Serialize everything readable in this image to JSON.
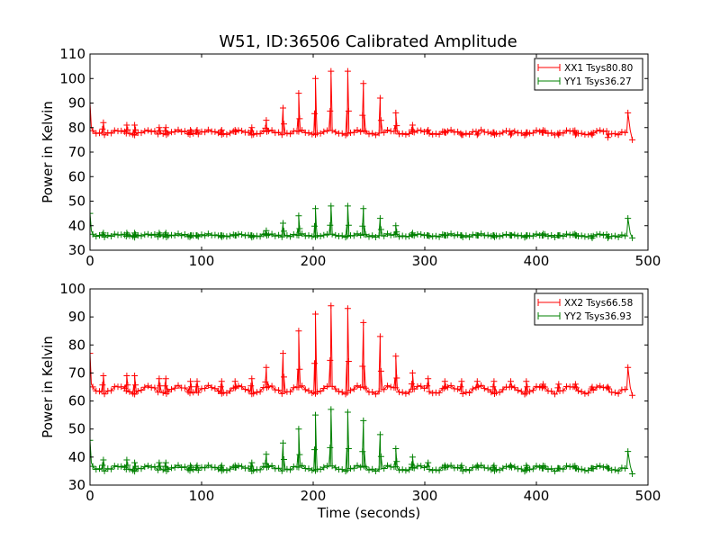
{
  "title": "W51, ID:36506 Calibrated Amplitude",
  "colors": {
    "xx": "#ff0000",
    "yy": "#008000",
    "axis": "#000000",
    "background": "#ffffff"
  },
  "chart_data": [
    {
      "type": "line",
      "ylabel": "Power in Kelvin",
      "xlabel": "",
      "xlim": [
        0,
        500
      ],
      "ylim": [
        30,
        110
      ],
      "xticks": [
        0,
        100,
        200,
        300,
        400,
        500
      ],
      "yticks": [
        30,
        40,
        50,
        60,
        70,
        80,
        90,
        100,
        110
      ],
      "grid": false,
      "legend_position": "top-right",
      "series": [
        {
          "name": "XX1 Tsys80.80",
          "color": "#ff0000",
          "marker": "+",
          "start": {
            "x": 0,
            "y": 90
          },
          "baseline": 78,
          "ripple_amplitude": 1.5,
          "ripple_period_s": 27,
          "end": {
            "x": 482,
            "peak": 86,
            "x_last": 486,
            "y_last": 75
          },
          "peaks": [
            {
              "x": 12,
              "y": 82
            },
            {
              "x": 33,
              "y": 81
            },
            {
              "x": 40,
              "y": 81
            },
            {
              "x": 62,
              "y": 80
            },
            {
              "x": 68,
              "y": 80
            },
            {
              "x": 90,
              "y": 79
            },
            {
              "x": 96,
              "y": 79
            },
            {
              "x": 118,
              "y": 79
            },
            {
              "x": 130,
              "y": 79
            },
            {
              "x": 145,
              "y": 80
            },
            {
              "x": 158,
              "y": 83
            },
            {
              "x": 173,
              "y": 88
            },
            {
              "x": 187,
              "y": 94
            },
            {
              "x": 202,
              "y": 100
            },
            {
              "x": 216,
              "y": 103
            },
            {
              "x": 231,
              "y": 103
            },
            {
              "x": 245,
              "y": 98
            },
            {
              "x": 260,
              "y": 92
            },
            {
              "x": 274,
              "y": 86
            },
            {
              "x": 289,
              "y": 81
            },
            {
              "x": 303,
              "y": 79
            },
            {
              "x": 318,
              "y": 78
            },
            {
              "x": 333,
              "y": 77
            },
            {
              "x": 347,
              "y": 77
            },
            {
              "x": 362,
              "y": 78
            },
            {
              "x": 377,
              "y": 77
            },
            {
              "x": 391,
              "y": 78
            },
            {
              "x": 406,
              "y": 78
            },
            {
              "x": 420,
              "y": 77
            },
            {
              "x": 435,
              "y": 77
            },
            {
              "x": 450,
              "y": 77
            },
            {
              "x": 464,
              "y": 76
            }
          ]
        },
        {
          "name": "YY1 Tsys36.27",
          "color": "#008000",
          "marker": "+",
          "start": {
            "x": 0,
            "y": 45
          },
          "baseline": 36,
          "ripple_amplitude": 0.8,
          "ripple_period_s": 27,
          "end": {
            "x": 482,
            "peak": 43,
            "x_last": 486,
            "y_last": 35
          },
          "peaks": [
            {
              "x": 12,
              "y": 37
            },
            {
              "x": 33,
              "y": 37
            },
            {
              "x": 40,
              "y": 37
            },
            {
              "x": 62,
              "y": 37
            },
            {
              "x": 68,
              "y": 37
            },
            {
              "x": 90,
              "y": 36
            },
            {
              "x": 96,
              "y": 36
            },
            {
              "x": 118,
              "y": 36
            },
            {
              "x": 130,
              "y": 36
            },
            {
              "x": 145,
              "y": 36
            },
            {
              "x": 158,
              "y": 38
            },
            {
              "x": 173,
              "y": 41
            },
            {
              "x": 187,
              "y": 44
            },
            {
              "x": 202,
              "y": 47
            },
            {
              "x": 216,
              "y": 48
            },
            {
              "x": 231,
              "y": 48
            },
            {
              "x": 245,
              "y": 47
            },
            {
              "x": 260,
              "y": 43
            },
            {
              "x": 274,
              "y": 40
            },
            {
              "x": 289,
              "y": 37
            },
            {
              "x": 303,
              "y": 36
            },
            {
              "x": 318,
              "y": 36
            },
            {
              "x": 333,
              "y": 36
            },
            {
              "x": 347,
              "y": 36
            },
            {
              "x": 362,
              "y": 36
            },
            {
              "x": 377,
              "y": 36
            },
            {
              "x": 391,
              "y": 36
            },
            {
              "x": 406,
              "y": 36
            },
            {
              "x": 420,
              "y": 36
            },
            {
              "x": 435,
              "y": 36
            },
            {
              "x": 450,
              "y": 35
            },
            {
              "x": 464,
              "y": 35
            }
          ]
        }
      ]
    },
    {
      "type": "line",
      "ylabel": "Power in Kelvin",
      "xlabel": "Time (seconds)",
      "xlim": [
        0,
        500
      ],
      "ylim": [
        30,
        100
      ],
      "xticks": [
        0,
        100,
        200,
        300,
        400,
        500
      ],
      "yticks": [
        30,
        40,
        50,
        60,
        70,
        80,
        90,
        100
      ],
      "grid": false,
      "legend_position": "top-right",
      "series": [
        {
          "name": "XX2 Tsys66.58",
          "color": "#ff0000",
          "marker": "+",
          "start": {
            "x": 0,
            "y": 77
          },
          "baseline": 64,
          "ripple_amplitude": 2.5,
          "ripple_period_s": 27,
          "end": {
            "x": 482,
            "peak": 72,
            "x_last": 486,
            "y_last": 62
          },
          "peaks": [
            {
              "x": 12,
              "y": 69
            },
            {
              "x": 33,
              "y": 69
            },
            {
              "x": 40,
              "y": 69
            },
            {
              "x": 62,
              "y": 68
            },
            {
              "x": 68,
              "y": 68
            },
            {
              "x": 90,
              "y": 67
            },
            {
              "x": 96,
              "y": 67
            },
            {
              "x": 118,
              "y": 67
            },
            {
              "x": 130,
              "y": 67
            },
            {
              "x": 145,
              "y": 68
            },
            {
              "x": 158,
              "y": 72
            },
            {
              "x": 173,
              "y": 77
            },
            {
              "x": 187,
              "y": 85
            },
            {
              "x": 202,
              "y": 91
            },
            {
              "x": 216,
              "y": 94
            },
            {
              "x": 231,
              "y": 93
            },
            {
              "x": 245,
              "y": 88
            },
            {
              "x": 260,
              "y": 83
            },
            {
              "x": 274,
              "y": 76
            },
            {
              "x": 289,
              "y": 70
            },
            {
              "x": 303,
              "y": 68
            },
            {
              "x": 318,
              "y": 67
            },
            {
              "x": 333,
              "y": 67
            },
            {
              "x": 347,
              "y": 67
            },
            {
              "x": 362,
              "y": 67
            },
            {
              "x": 377,
              "y": 67
            },
            {
              "x": 391,
              "y": 67
            },
            {
              "x": 406,
              "y": 66
            },
            {
              "x": 420,
              "y": 66
            },
            {
              "x": 435,
              "y": 66
            },
            {
              "x": 450,
              "y": 65
            },
            {
              "x": 464,
              "y": 65
            }
          ]
        },
        {
          "name": "YY2 Tsys36.93",
          "color": "#008000",
          "marker": "+",
          "start": {
            "x": 0,
            "y": 46
          },
          "baseline": 36,
          "ripple_amplitude": 1.5,
          "ripple_period_s": 27,
          "end": {
            "x": 482,
            "peak": 42,
            "x_last": 486,
            "y_last": 34
          },
          "peaks": [
            {
              "x": 12,
              "y": 39
            },
            {
              "x": 33,
              "y": 39
            },
            {
              "x": 40,
              "y": 38
            },
            {
              "x": 62,
              "y": 38
            },
            {
              "x": 68,
              "y": 38
            },
            {
              "x": 90,
              "y": 37
            },
            {
              "x": 96,
              "y": 37
            },
            {
              "x": 118,
              "y": 37
            },
            {
              "x": 130,
              "y": 37
            },
            {
              "x": 145,
              "y": 38
            },
            {
              "x": 158,
              "y": 41
            },
            {
              "x": 173,
              "y": 45
            },
            {
              "x": 187,
              "y": 50
            },
            {
              "x": 202,
              "y": 55
            },
            {
              "x": 216,
              "y": 57
            },
            {
              "x": 231,
              "y": 56
            },
            {
              "x": 245,
              "y": 53
            },
            {
              "x": 260,
              "y": 48
            },
            {
              "x": 274,
              "y": 43
            },
            {
              "x": 289,
              "y": 40
            },
            {
              "x": 303,
              "y": 38
            },
            {
              "x": 318,
              "y": 37
            },
            {
              "x": 333,
              "y": 37
            },
            {
              "x": 347,
              "y": 37
            },
            {
              "x": 362,
              "y": 37
            },
            {
              "x": 377,
              "y": 37
            },
            {
              "x": 391,
              "y": 37
            },
            {
              "x": 406,
              "y": 36
            },
            {
              "x": 420,
              "y": 36
            },
            {
              "x": 435,
              "y": 36
            },
            {
              "x": 450,
              "y": 36
            },
            {
              "x": 464,
              "y": 36
            }
          ]
        }
      ]
    }
  ]
}
